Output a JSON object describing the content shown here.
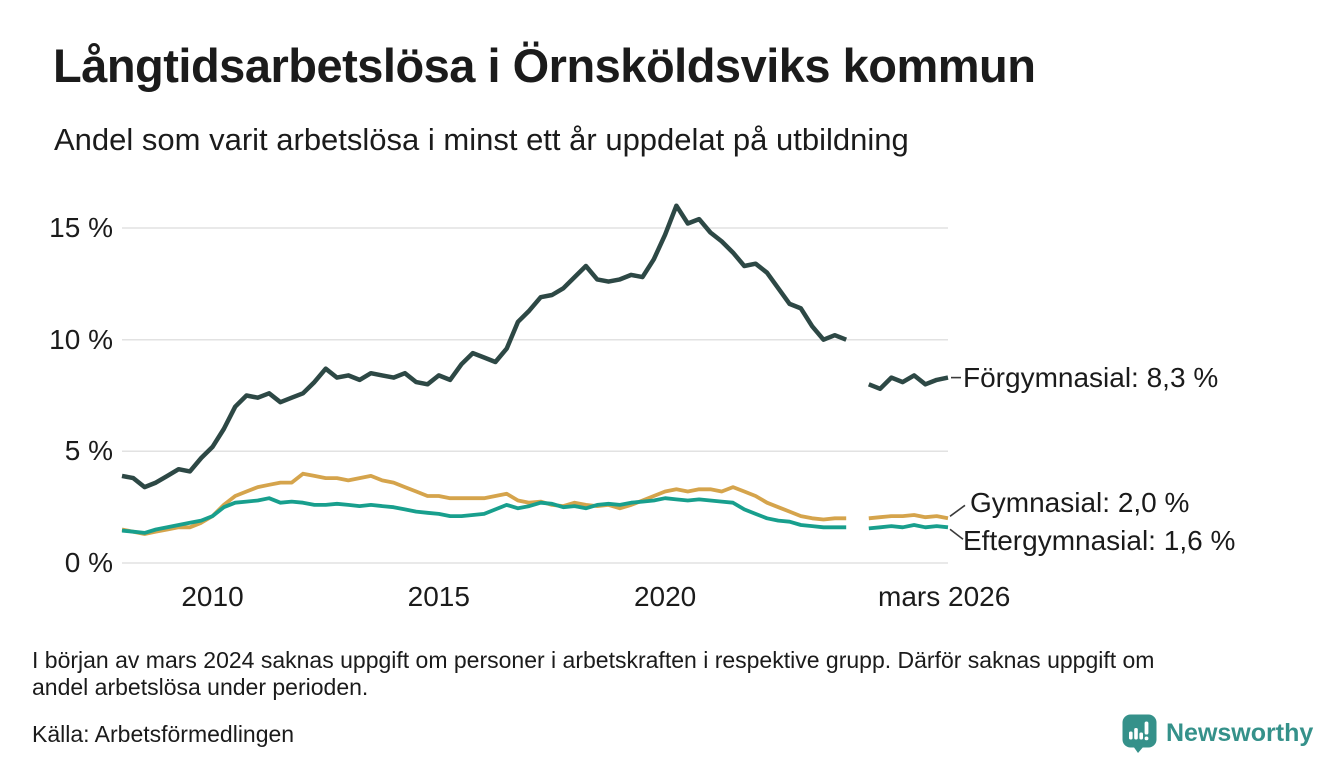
{
  "header": {
    "title": "Långtidsarbetslösa i Örnsköldsviks kommun",
    "subtitle": "Andel som varit arbetslösa i minst ett år uppdelat på utbildning"
  },
  "footnote": {
    "lines": [
      "I början av mars 2024 saknas uppgift om personer i arbetskraften i respektive grupp. Därför saknas uppgift om",
      "andel arbetslösa under perioden."
    ]
  },
  "source": {
    "label": "Källa: Arbetsförmedlingen"
  },
  "branding": {
    "name": "Newsworthy",
    "color": "#35918a"
  },
  "theme": {
    "background": "#ffffff",
    "text_color": "#1b1b1b",
    "grid_color": "#e2e2e2",
    "connector_color": "#3a3a3a"
  },
  "chart_data": {
    "type": "line",
    "title": "Långtidsarbetslösa i Örnsköldsviks kommun",
    "subtitle": "Andel som varit arbetslösa i minst ett år uppdelat på utbildning",
    "xlabel": "",
    "ylabel": "",
    "x_unit": "decimal year, quarterly steps; null = missing period spring 2024",
    "xlim": [
      2008.0,
      2026.25
    ],
    "ylim": [
      0,
      16.5
    ],
    "grid": "horizontal",
    "yticks": [
      {
        "value": 0,
        "label": "0 %"
      },
      {
        "value": 5,
        "label": "5 %"
      },
      {
        "value": 10,
        "label": "10 %"
      },
      {
        "value": 15,
        "label": "15 %"
      }
    ],
    "xticks": [
      {
        "t": 2010,
        "label": "2010"
      },
      {
        "t": 2015,
        "label": "2015"
      },
      {
        "t": 2020,
        "label": "2020"
      },
      {
        "t": 2026.167,
        "label": "mars 2026"
      }
    ],
    "x": [
      2008,
      2008.25,
      2008.5,
      2008.75,
      2009,
      2009.25,
      2009.5,
      2009.75,
      2010,
      2010.25,
      2010.5,
      2010.75,
      2011,
      2011.25,
      2011.5,
      2011.75,
      2012,
      2012.25,
      2012.5,
      2012.75,
      2013,
      2013.25,
      2013.5,
      2013.75,
      2014,
      2014.25,
      2014.5,
      2014.75,
      2015,
      2015.25,
      2015.5,
      2015.75,
      2016,
      2016.25,
      2016.5,
      2016.75,
      2017,
      2017.25,
      2017.5,
      2017.75,
      2018,
      2018.25,
      2018.5,
      2018.75,
      2019,
      2019.25,
      2019.5,
      2019.75,
      2020,
      2020.25,
      2020.5,
      2020.75,
      2021,
      2021.25,
      2021.5,
      2021.75,
      2022,
      2022.25,
      2022.5,
      2022.75,
      2023,
      2023.25,
      2023.5,
      2023.75,
      2024,
      2024.25,
      2024.5,
      2024.75,
      2025,
      2025.25,
      2025.5,
      2025.75,
      2026,
      2026.25
    ],
    "series": [
      {
        "name": "Förgymnasial",
        "slug": "forgymnasial",
        "color": "#2d4845",
        "end_label": "Förgymnasial: 8,3 %",
        "end_value_text": "8,3 %",
        "values": [
          3.9,
          3.8,
          3.4,
          3.6,
          3.9,
          4.2,
          4.1,
          4.7,
          5.2,
          6.0,
          7.0,
          7.5,
          7.4,
          7.6,
          7.2,
          7.4,
          7.6,
          8.1,
          8.7,
          8.3,
          8.4,
          8.2,
          8.5,
          8.4,
          8.3,
          8.5,
          8.1,
          8.0,
          8.4,
          8.2,
          8.9,
          9.4,
          9.2,
          9.0,
          9.6,
          10.8,
          11.3,
          11.9,
          12.0,
          12.3,
          12.8,
          13.3,
          12.7,
          12.6,
          12.7,
          12.9,
          12.8,
          13.6,
          14.7,
          16.0,
          15.2,
          15.4,
          14.8,
          14.4,
          13.9,
          13.3,
          13.4,
          13.0,
          12.3,
          11.6,
          11.4,
          10.6,
          10.0,
          10.2,
          10.0,
          null,
          8.0,
          7.8,
          8.3,
          8.1,
          8.4,
          8.0,
          8.2,
          8.3
        ]
      },
      {
        "name": "Gymnasial",
        "slug": "gymnasial",
        "color": "#d5a44c",
        "end_label": "Gymnasial: 2,0 %",
        "end_value_text": "2,0 %",
        "values": [
          1.5,
          1.4,
          1.3,
          1.4,
          1.5,
          1.6,
          1.6,
          1.8,
          2.1,
          2.6,
          3.0,
          3.2,
          3.4,
          3.5,
          3.6,
          3.6,
          4.0,
          3.9,
          3.8,
          3.8,
          3.7,
          3.8,
          3.9,
          3.7,
          3.6,
          3.4,
          3.2,
          3.0,
          3.0,
          2.9,
          2.9,
          2.9,
          2.9,
          3.0,
          3.1,
          2.8,
          2.7,
          2.75,
          2.6,
          2.55,
          2.7,
          2.6,
          2.55,
          2.6,
          2.45,
          2.6,
          2.8,
          3.0,
          3.2,
          3.3,
          3.2,
          3.3,
          3.3,
          3.2,
          3.4,
          3.2,
          3.0,
          2.7,
          2.5,
          2.3,
          2.1,
          2.0,
          1.95,
          2.0,
          2.0,
          null,
          2.0,
          2.05,
          2.1,
          2.1,
          2.15,
          2.05,
          2.1,
          2.0
        ]
      },
      {
        "name": "Eftergymnasial",
        "slug": "eftergymnasial",
        "color": "#189f8d",
        "end_label": "Eftergymnasial: 1,6 %",
        "end_value_text": "1,6 %",
        "values": [
          1.45,
          1.4,
          1.35,
          1.5,
          1.6,
          1.7,
          1.8,
          1.9,
          2.1,
          2.5,
          2.7,
          2.75,
          2.8,
          2.9,
          2.7,
          2.75,
          2.7,
          2.6,
          2.6,
          2.65,
          2.6,
          2.55,
          2.6,
          2.55,
          2.5,
          2.4,
          2.3,
          2.25,
          2.2,
          2.1,
          2.1,
          2.15,
          2.2,
          2.4,
          2.6,
          2.45,
          2.55,
          2.7,
          2.65,
          2.5,
          2.55,
          2.45,
          2.6,
          2.65,
          2.6,
          2.7,
          2.75,
          2.8,
          2.9,
          2.85,
          2.8,
          2.85,
          2.8,
          2.75,
          2.7,
          2.4,
          2.2,
          2.0,
          1.9,
          1.85,
          1.7,
          1.65,
          1.6,
          1.6,
          1.6,
          null,
          1.55,
          1.6,
          1.65,
          1.6,
          1.7,
          1.6,
          1.65,
          1.6
        ]
      }
    ]
  }
}
